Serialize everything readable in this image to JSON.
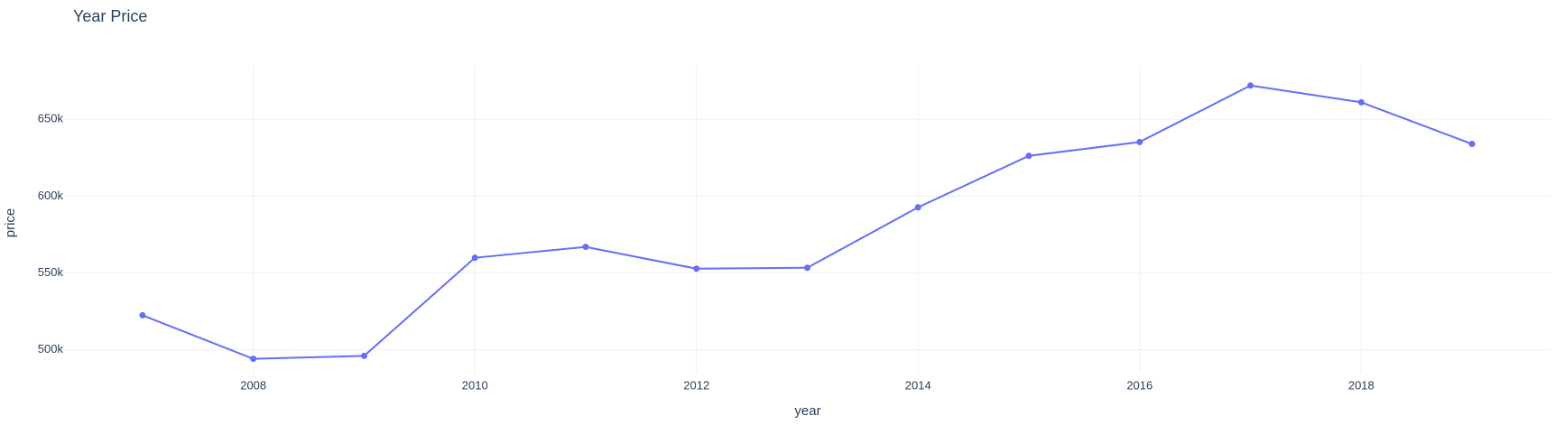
{
  "chart_data": {
    "type": "line",
    "title": "Year Price",
    "x_label": "year",
    "y_label": "price",
    "x": [
      2007,
      2008,
      2009,
      2010,
      2011,
      2012,
      2013,
      2014,
      2015,
      2016,
      2017,
      2018,
      2019
    ],
    "series": [
      {
        "name": "price",
        "color": "#636efa",
        "values": [
          522500,
          494200,
          496100,
          559900,
          567000,
          552800,
          553400,
          592700,
          626200,
          635200,
          671900,
          661000,
          633900
        ]
      }
    ],
    "xlim": [
      2006.3,
      2019.7
    ],
    "xticks": [
      2008,
      2010,
      2012,
      2014,
      2016,
      2018
    ],
    "ylim": [
      485200,
      684100
    ],
    "yticks": [
      {
        "value": 500000,
        "label": "500k"
      },
      {
        "value": 550000,
        "label": "550k"
      },
      {
        "value": 600000,
        "label": "600k"
      },
      {
        "value": 650000,
        "label": "650k"
      }
    ],
    "grid": true
  }
}
